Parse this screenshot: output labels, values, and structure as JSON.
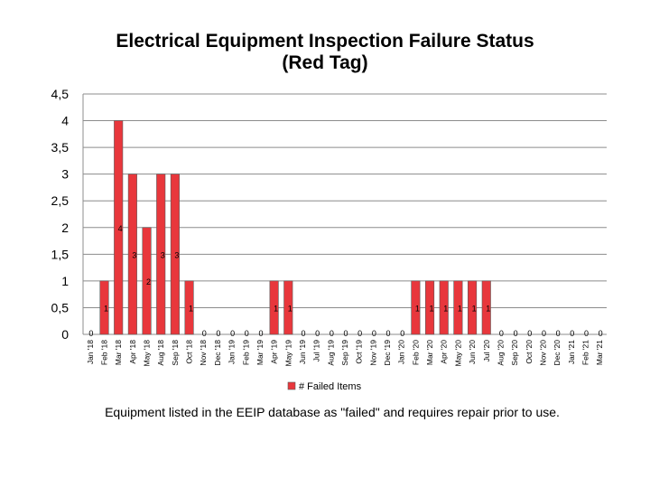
{
  "chart_data": {
    "type": "bar",
    "title_line1": "Electrical Equipment Inspection Failure Status",
    "title_line2": "(Red Tag)",
    "xlabel": "",
    "ylabel": "",
    "ylim": [
      0,
      4.5
    ],
    "y_ticks": [
      "0",
      "0,5",
      "1",
      "1,5",
      "2",
      "2,5",
      "3",
      "3,5",
      "4",
      "4,5"
    ],
    "grid": true,
    "legend_position": "bottom",
    "bar_color": "#e8373c",
    "categories": [
      "Jan '18",
      "Feb '18",
      "Mar '18",
      "Apr '18",
      "May '18",
      "Aug '18",
      "Sep '18",
      "Oct '18",
      "Nov '18",
      "Dec '18",
      "Jan '19",
      "Feb '19",
      "Mar '19",
      "Apr '19",
      "May '19",
      "Jun '19",
      "Jul '19",
      "Aug '19",
      "Sep '19",
      "Oct '19",
      "Nov '19",
      "Dec '19",
      "Jan '20",
      "Feb '20",
      "Mar '20",
      "Apr '20",
      "May '20",
      "Jun '20",
      "Jul '20",
      "Aug '20",
      "Sep '20",
      "Oct '20",
      "Nov '20",
      "Dec '20",
      "Jan '21",
      "Feb '21",
      "Mar '21"
    ],
    "series": [
      {
        "name": "# Failed Items",
        "values": [
          0,
          1,
          4,
          3,
          2,
          3,
          3,
          1,
          0,
          0,
          0,
          0,
          0,
          1,
          1,
          0,
          0,
          0,
          0,
          0,
          0,
          0,
          0,
          1,
          1,
          1,
          1,
          1,
          1,
          0,
          0,
          0,
          0,
          0,
          0,
          0,
          0
        ]
      }
    ]
  },
  "caption": "Equipment listed in the EEIP database as \"failed\" and requires repair prior to use."
}
